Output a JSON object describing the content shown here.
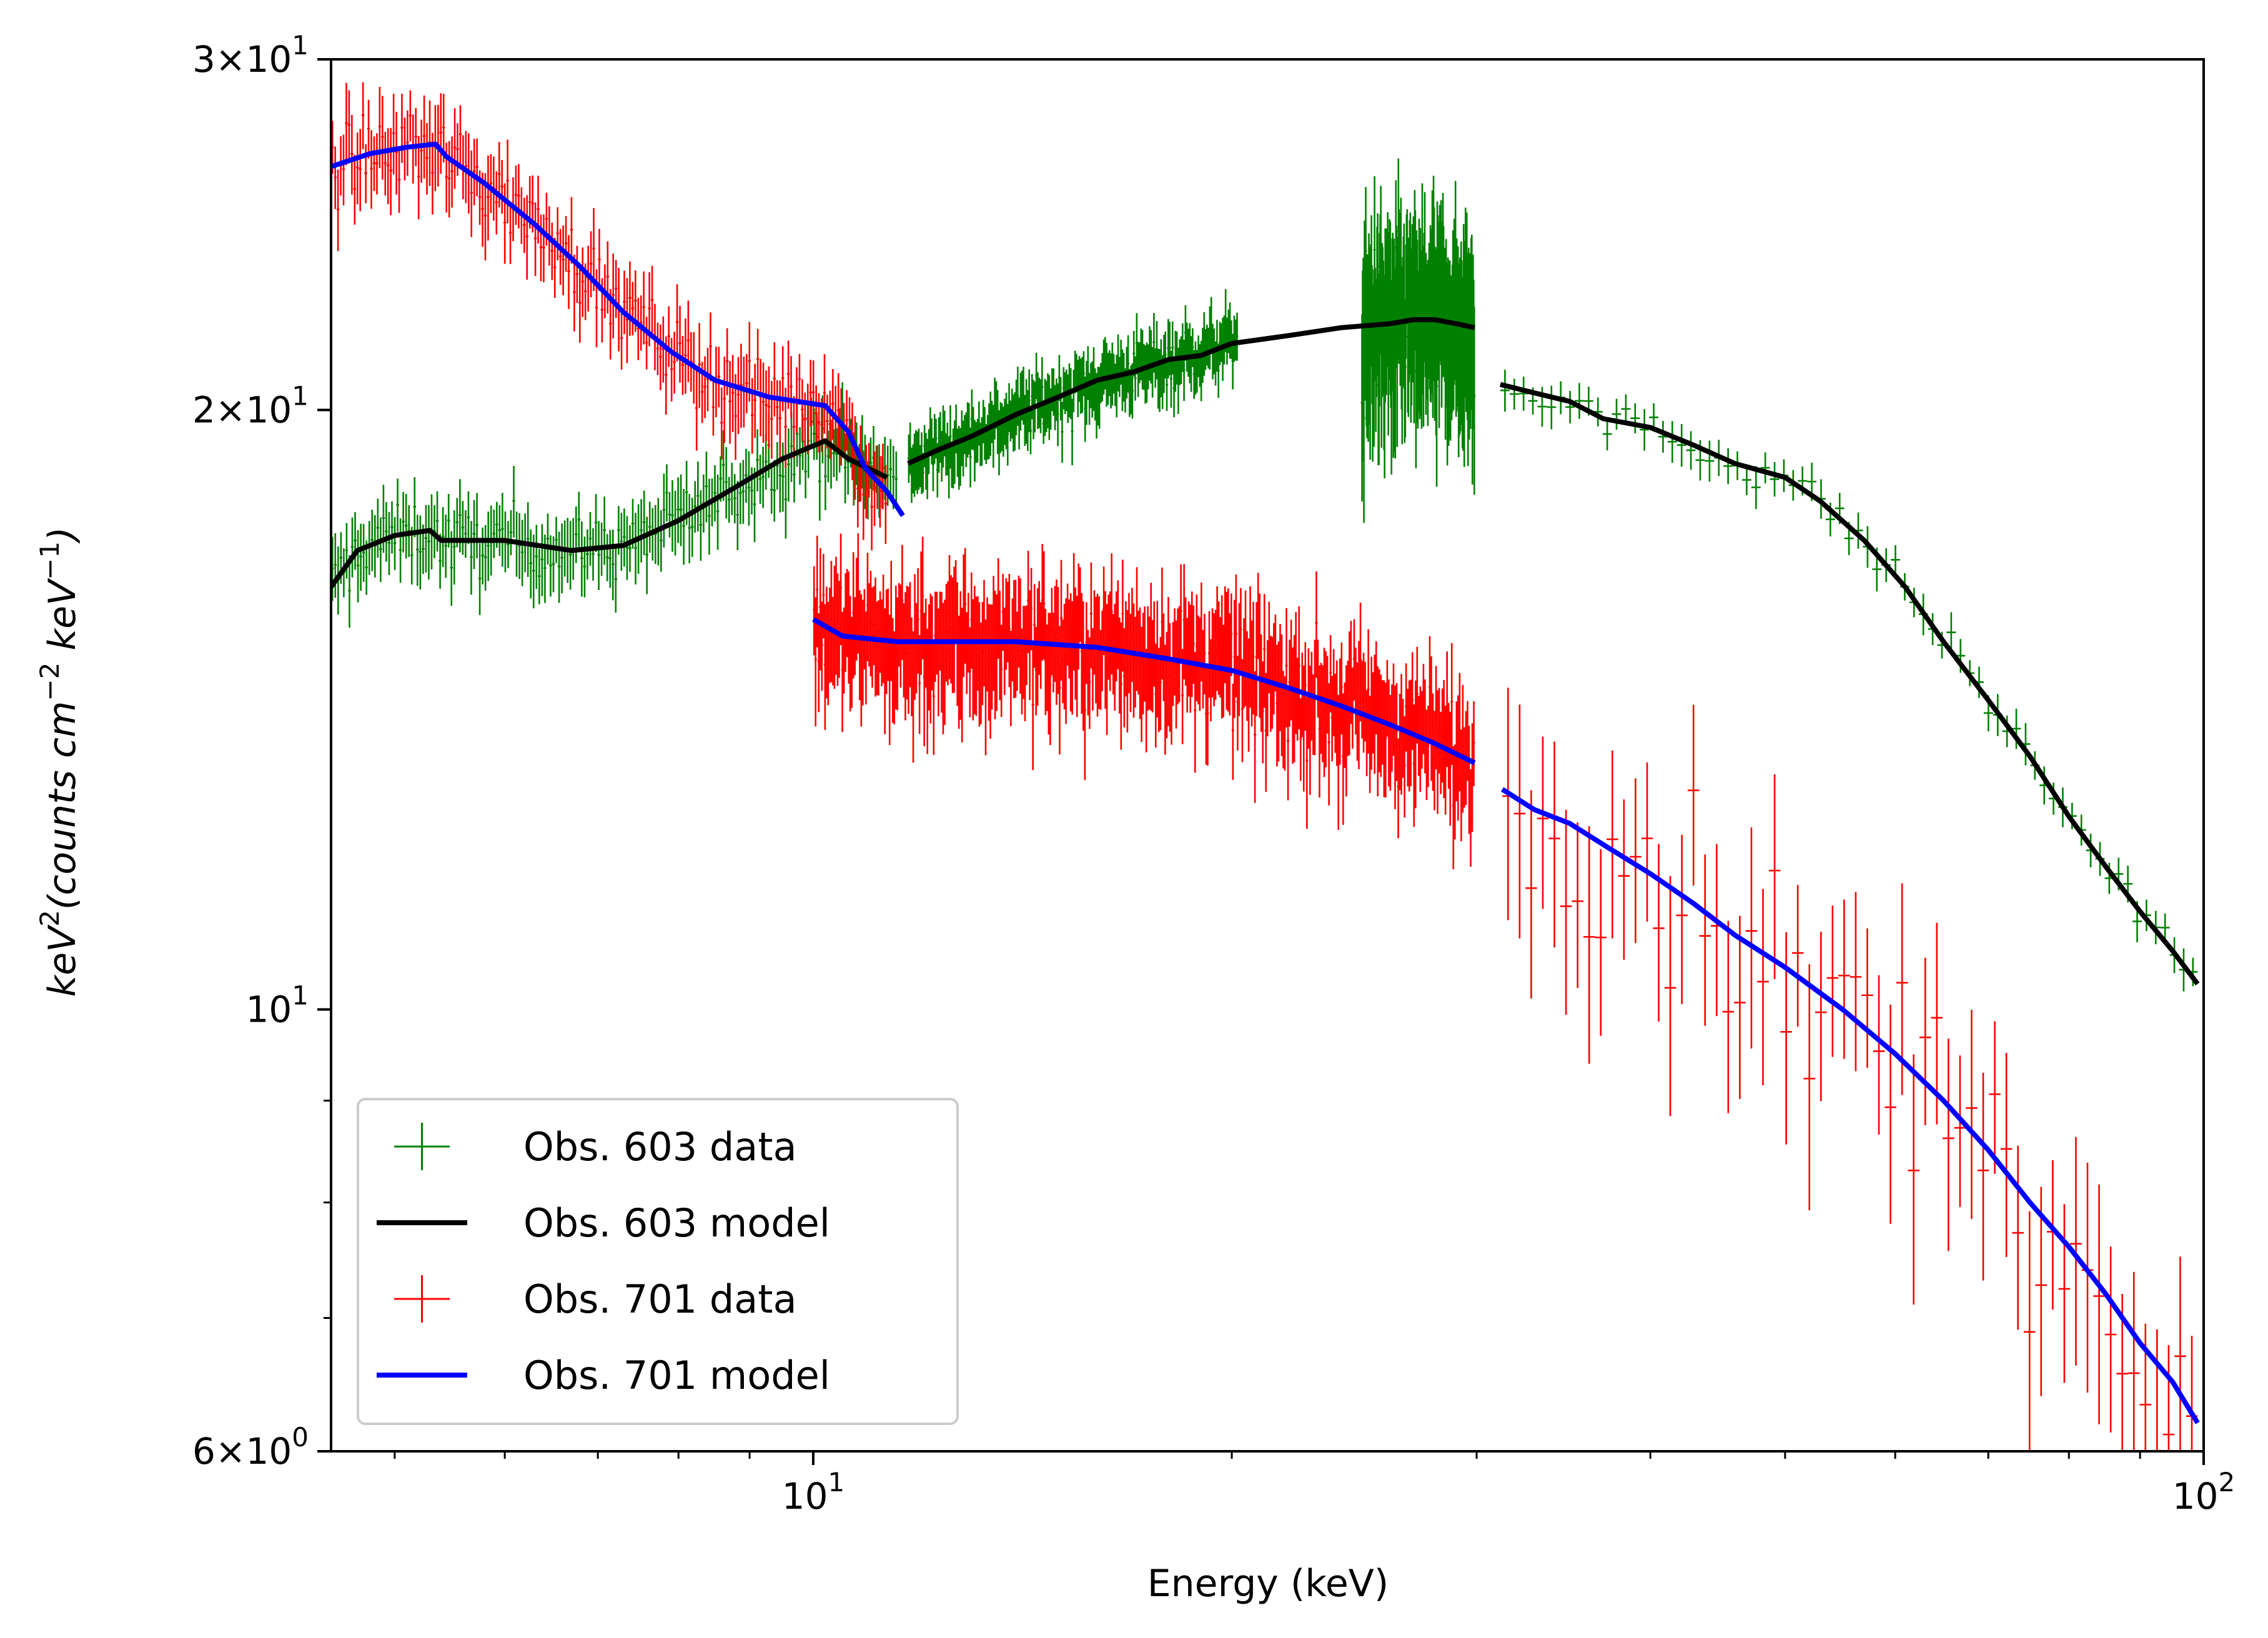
{
  "chart_data": {
    "type": "line",
    "title": "",
    "xlabel": "Energy (keV)",
    "ylabel_parts": [
      "keV",
      "2",
      "(counts cm",
      "−2",
      " keV",
      "−1",
      ")"
    ],
    "xscale": "log",
    "yscale": "log",
    "xlim": [
      4.5,
      100
    ],
    "ylim": [
      6,
      30
    ],
    "x_major_ticks": [
      {
        "value": 10,
        "base": "10",
        "exp": "1"
      },
      {
        "value": 100,
        "base": "10",
        "exp": "2"
      }
    ],
    "y_major_ticks": [
      {
        "value": 30,
        "mantissa": "3",
        "base": "10",
        "exp": "1"
      },
      {
        "value": 20,
        "mantissa": "2",
        "base": "10",
        "exp": "1"
      },
      {
        "value": 10,
        "mantissa": "",
        "base": "10",
        "exp": "1"
      },
      {
        "value": 6,
        "mantissa": "6",
        "base": "10",
        "exp": "0"
      }
    ],
    "x_minor_ticks": [
      5,
      6,
      7,
      8,
      9,
      20,
      30,
      40,
      50,
      60,
      70,
      80,
      90
    ],
    "y_minor_ticks": [
      7,
      8,
      9
    ],
    "legend": {
      "placement": "lower-left",
      "entries": [
        {
          "label": "Obs. 603 data",
          "style": "errorbar",
          "color": "#008000"
        },
        {
          "label": "Obs. 603 model",
          "style": "line",
          "color": "#000000"
        },
        {
          "label": "Obs. 701 data",
          "style": "errorbar",
          "color": "#ff0000"
        },
        {
          "label": "Obs. 701 model",
          "style": "line",
          "color": "#0000ff"
        }
      ]
    },
    "series": [
      {
        "name": "Obs. 603 model",
        "color": "#000000",
        "segments": [
          [
            [
              4.5,
              16.3
            ],
            [
              4.7,
              17.0
            ],
            [
              5.0,
              17.3
            ],
            [
              5.3,
              17.4
            ],
            [
              5.4,
              17.2
            ],
            [
              6.0,
              17.2
            ],
            [
              6.7,
              17.0
            ],
            [
              7.3,
              17.1
            ],
            [
              8.0,
              17.6
            ],
            [
              8.8,
              18.3
            ],
            [
              9.5,
              18.9
            ],
            [
              10.2,
              19.3
            ],
            [
              10.6,
              18.9
            ],
            [
              11.3,
              18.5
            ]
          ],
          [
            [
              11.7,
              18.8
            ],
            [
              12.3,
              19.1
            ],
            [
              13.0,
              19.4
            ],
            [
              14.0,
              19.9
            ],
            [
              15.0,
              20.3
            ],
            [
              16.0,
              20.7
            ],
            [
              17.0,
              20.9
            ],
            [
              18.0,
              21.2
            ],
            [
              19.0,
              21.3
            ],
            [
              20.0,
              21.6
            ],
            [
              22.0,
              21.8
            ],
            [
              24.0,
              22.0
            ],
            [
              26.0,
              22.1
            ],
            [
              27.0,
              22.2
            ],
            [
              28.0,
              22.2
            ],
            [
              29.0,
              22.1
            ],
            [
              29.9,
              22.0
            ]
          ],
          [
            [
              31.2,
              20.6
            ],
            [
              33.0,
              20.4
            ],
            [
              35.0,
              20.2
            ],
            [
              37.0,
              19.8
            ],
            [
              40.0,
              19.6
            ],
            [
              43.0,
              19.2
            ],
            [
              46.0,
              18.8
            ],
            [
              50.0,
              18.5
            ],
            [
              53.0,
              18.0
            ],
            [
              57.0,
              17.2
            ],
            [
              61.0,
              16.3
            ],
            [
              65.0,
              15.3
            ],
            [
              70.0,
              14.3
            ],
            [
              75.0,
              13.4
            ],
            [
              80.0,
              12.5
            ],
            [
              85.0,
              11.8
            ],
            [
              90.0,
              11.2
            ],
            [
              95.0,
              10.7
            ],
            [
              99.0,
              10.3
            ]
          ]
        ]
      },
      {
        "name": "Obs. 701 model",
        "color": "#0000ff",
        "segments": [
          [
            [
              4.5,
              26.5
            ],
            [
              4.8,
              26.9
            ],
            [
              5.1,
              27.1
            ],
            [
              5.35,
              27.2
            ],
            [
              5.45,
              26.8
            ],
            [
              5.8,
              26.0
            ],
            [
              6.3,
              24.8
            ],
            [
              6.8,
              23.6
            ],
            [
              7.3,
              22.4
            ],
            [
              7.9,
              21.4
            ],
            [
              8.5,
              20.7
            ],
            [
              9.3,
              20.3
            ],
            [
              10.2,
              20.1
            ],
            [
              10.6,
              19.5
            ],
            [
              10.9,
              18.7
            ],
            [
              11.3,
              18.2
            ],
            [
              11.6,
              17.7
            ]
          ],
          [
            [
              10.0,
              15.7
            ],
            [
              10.5,
              15.4
            ],
            [
              11.5,
              15.3
            ],
            [
              12.5,
              15.3
            ],
            [
              14.0,
              15.3
            ],
            [
              16.0,
              15.2
            ],
            [
              18.0,
              15.0
            ],
            [
              20.0,
              14.8
            ],
            [
              22.0,
              14.5
            ],
            [
              24.0,
              14.2
            ],
            [
              26.0,
              13.9
            ],
            [
              28.0,
              13.6
            ],
            [
              29.9,
              13.3
            ]
          ],
          [
            [
              31.3,
              12.9
            ],
            [
              33.0,
              12.6
            ],
            [
              35.0,
              12.4
            ],
            [
              37.0,
              12.1
            ],
            [
              40.0,
              11.7
            ],
            [
              43.0,
              11.3
            ],
            [
              46.0,
              10.9
            ],
            [
              50.0,
              10.5
            ],
            [
              55.0,
              10.0
            ],
            [
              60.0,
              9.5
            ],
            [
              65.0,
              9.0
            ],
            [
              70.0,
              8.5
            ],
            [
              75.0,
              8.0
            ],
            [
              80.0,
              7.6
            ],
            [
              85.0,
              7.2
            ],
            [
              90.0,
              6.8
            ],
            [
              95.0,
              6.5
            ],
            [
              99.0,
              6.2
            ]
          ]
        ]
      }
    ],
    "data_series": [
      {
        "name": "Obs. 603 data",
        "color": "#008000",
        "segments": [
          {
            "x_range": [
              4.5,
              11.5
            ],
            "n": 200,
            "rel_err": 0.035,
            "model": "Obs. 603 model",
            "model_segment": 0
          },
          {
            "x_range": [
              11.7,
              20.2
            ],
            "n": 230,
            "rel_err": 0.03,
            "model": "Obs. 603 model",
            "model_segment": 1
          },
          {
            "x_range": [
              24.8,
              29.9
            ],
            "n": 180,
            "rel_err": 0.085,
            "model": "Obs. 603 model",
            "model_segment": 1
          },
          {
            "x_range": [
              31.2,
              99.0
            ],
            "n": 75,
            "rel_err": 0.02,
            "model": "Obs. 603 model",
            "model_segment": 2
          }
        ]
      },
      {
        "name": "Obs. 701 data",
        "color": "#ff0000",
        "segments": [
          {
            "x_range": [
              4.5,
              11.3
            ],
            "n": 200,
            "rel_err": 0.04,
            "model": "Obs. 701 model",
            "model_segment": 0
          },
          {
            "x_range": [
              10.0,
              29.9
            ],
            "n": 420,
            "rel_err": 0.06,
            "model": "Obs. 701 model",
            "model_segment": 1
          },
          {
            "x_range": [
              31.3,
              99.0
            ],
            "n": 60,
            "rel_err": 0.11,
            "model": "Obs. 701 model",
            "model_segment": 2
          }
        ]
      }
    ]
  }
}
